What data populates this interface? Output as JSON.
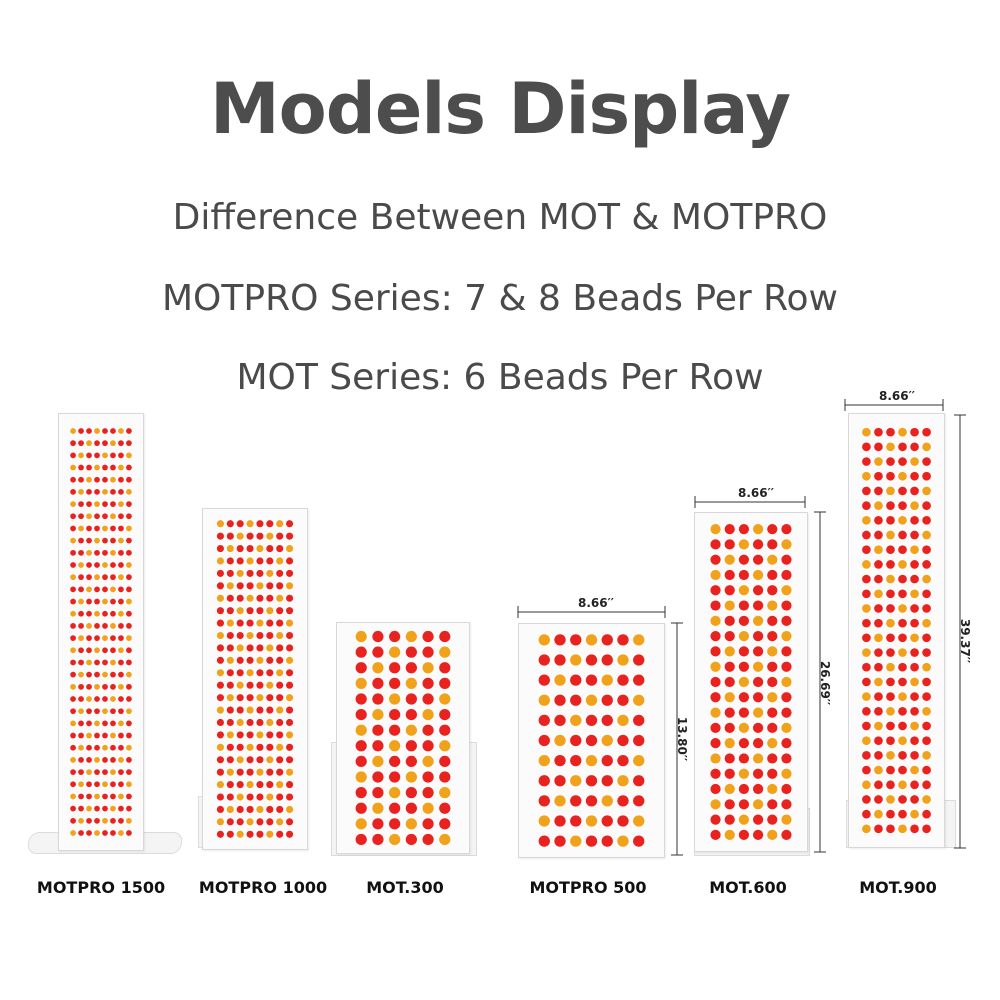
{
  "header": {
    "title": "Models Display",
    "line1": "Difference Between MOT & MOTPRO",
    "line2": "MOTPRO Series: 7 & 8 Beads Per Row",
    "line3": "MOT Series: 6 Beads Per Row"
  },
  "colors": {
    "bead_red": "#e8231f",
    "bead_orange": "#f0a21a",
    "panel": "#fbfbfb",
    "text": "#4a4a4a"
  },
  "products": [
    {
      "name": "MOTPRO 1500",
      "beads_per_row": 8
    },
    {
      "name": "MOTPRO 1000",
      "beads_per_row": 8
    },
    {
      "name": "MOT.300",
      "beads_per_row": 6
    },
    {
      "name": "MOTPRO 500",
      "beads_per_row": 7
    },
    {
      "name": "MOT.600",
      "beads_per_row": 6
    },
    {
      "name": "MOT.900",
      "beads_per_row": 6
    }
  ],
  "dimensions": {
    "width_label": "8.66′′",
    "h500": "13.80′′",
    "h600": "26.69′′",
    "h900": "39.37′′"
  }
}
